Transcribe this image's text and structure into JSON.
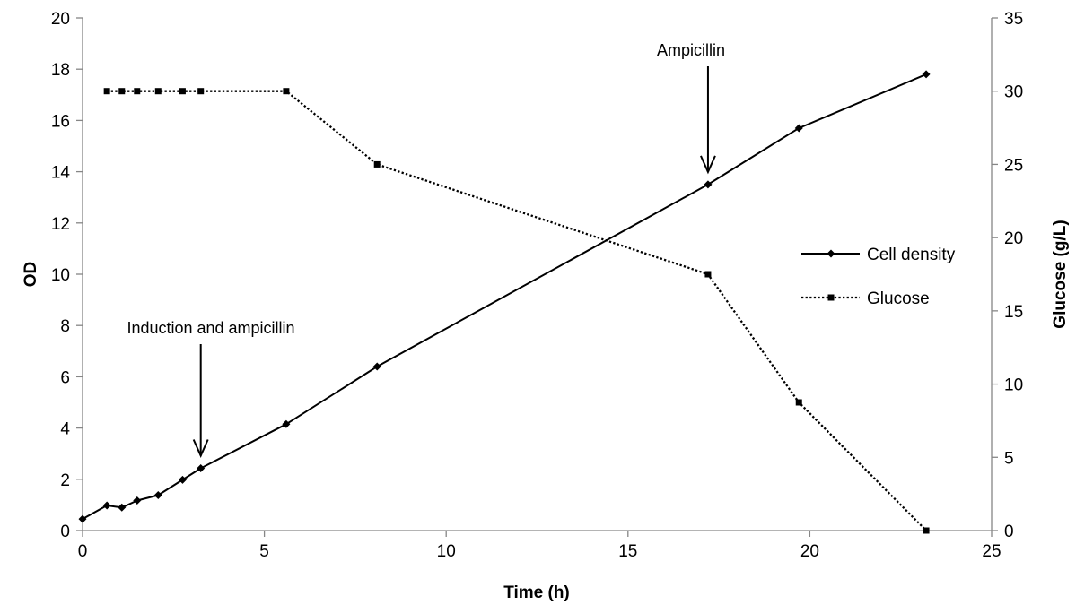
{
  "chart_data": {
    "type": "line",
    "title": "",
    "xlabel": "Time (h)",
    "ylabel": "OD",
    "y2label": "Glucose (g/L)",
    "xlim": [
      0,
      25
    ],
    "ylim": [
      0,
      20
    ],
    "y2lim": [
      0,
      35
    ],
    "x_ticks": [
      0,
      5,
      10,
      15,
      20,
      25
    ],
    "y_ticks": [
      0,
      2,
      4,
      6,
      8,
      10,
      12,
      14,
      16,
      18,
      20
    ],
    "y2_ticks": [
      0,
      5,
      10,
      15,
      20,
      25,
      30,
      35
    ],
    "grid": false,
    "legend_position": "right",
    "series": [
      {
        "name": "Cell density",
        "axis": "left",
        "style": "solid",
        "marker": "diamond",
        "color": "#000000",
        "x": [
          0,
          0.67,
          1.08,
          1.5,
          2.08,
          2.75,
          3.25,
          5.6,
          8.1,
          17.2,
          19.7,
          23.2
        ],
        "y": [
          0.45,
          0.98,
          0.9,
          1.17,
          1.38,
          1.98,
          2.43,
          4.15,
          6.4,
          13.5,
          15.7,
          17.8
        ]
      },
      {
        "name": "Glucose",
        "axis": "right",
        "style": "dotted",
        "marker": "square",
        "color": "#000000",
        "x": [
          0.67,
          1.08,
          1.5,
          2.08,
          2.75,
          3.25,
          5.6,
          8.1,
          17.2,
          19.7,
          23.2
        ],
        "y": [
          30,
          30,
          30,
          30,
          30,
          30,
          30,
          25,
          17.5,
          8.75,
          0
        ]
      }
    ],
    "annotations": [
      {
        "text": "Induction and ampicillin",
        "x": 3.25,
        "y": 2.43
      },
      {
        "text": "Ampicillin",
        "x": 17.2,
        "y": 13.5
      }
    ]
  }
}
